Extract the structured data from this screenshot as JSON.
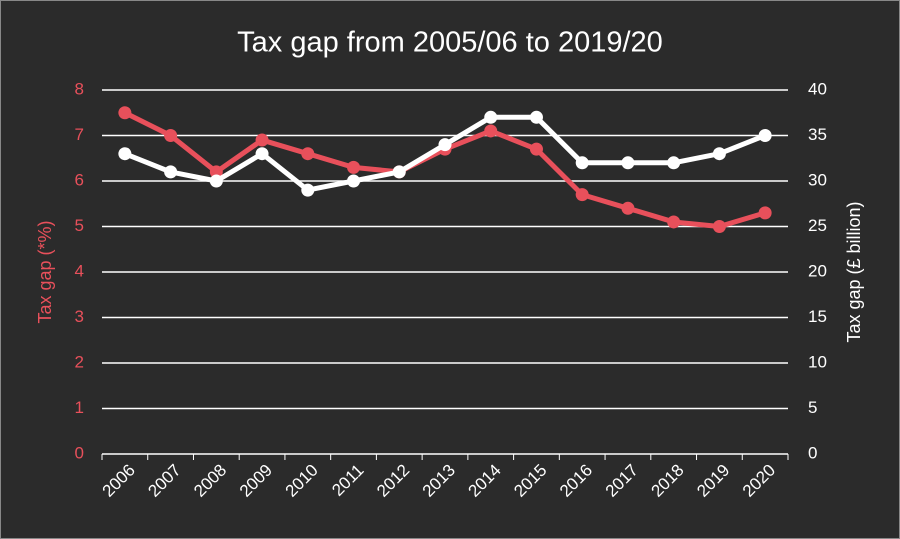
{
  "chart_data": {
    "type": "line",
    "title": "Tax gap from 2005/06 to 2019/20",
    "y_label": "Tax gap (*%)",
    "y2_label": "Tax gap (£ billion)",
    "categories": [
      "2006",
      "2007",
      "2008",
      "2009",
      "2010",
      "2011",
      "2012",
      "2013",
      "2014",
      "2015",
      "2016",
      "2017",
      "2018",
      "2019",
      "2020"
    ],
    "series": [
      {
        "color": "#e8505b",
        "values": [
          7.5,
          7.0,
          6.2,
          6.9,
          6.6,
          6.3,
          6.2,
          6.7,
          7.1,
          6.7,
          5.7,
          5.4,
          5.1,
          5.0,
          5.3
        ]
      },
      {
        "color": "#ffffff",
        "axis": "y2",
        "values": [
          33,
          31,
          30,
          33,
          29,
          30,
          31,
          34,
          37,
          37,
          32,
          32,
          32,
          33,
          35
        ]
      }
    ],
    "ylim": [
      0,
      8
    ],
    "yticks": [
      0,
      1,
      2,
      3,
      4,
      5,
      6,
      7,
      8
    ],
    "y2lim": [
      0,
      40
    ],
    "y2ticks": [
      0,
      5,
      10,
      15,
      20,
      25,
      30,
      35,
      40
    ],
    "grid": true
  }
}
